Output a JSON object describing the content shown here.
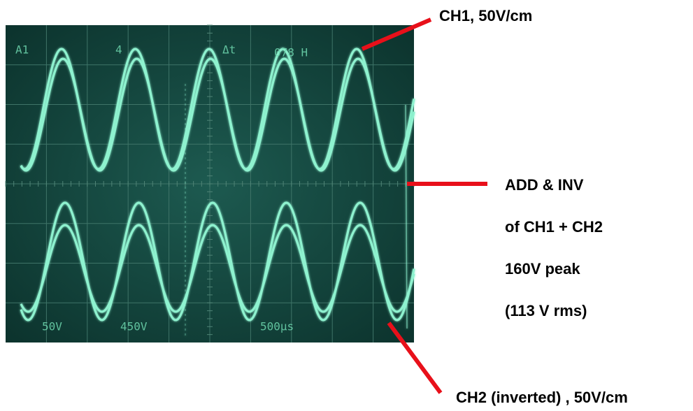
{
  "screen": {
    "top_labels": [
      "A1",
      "4",
      "Δt",
      "078 H"
    ],
    "bottom_labels": [
      "50V",
      "450V",
      "500µs"
    ]
  },
  "annotations": {
    "ch1": "CH1, 50V/cm",
    "sum": [
      "ADD & INV",
      "of CH1 + CH2",
      "160V peak",
      "(113 V rms)"
    ],
    "ch2": "CH2 (inverted) , 50V/cm"
  }
}
